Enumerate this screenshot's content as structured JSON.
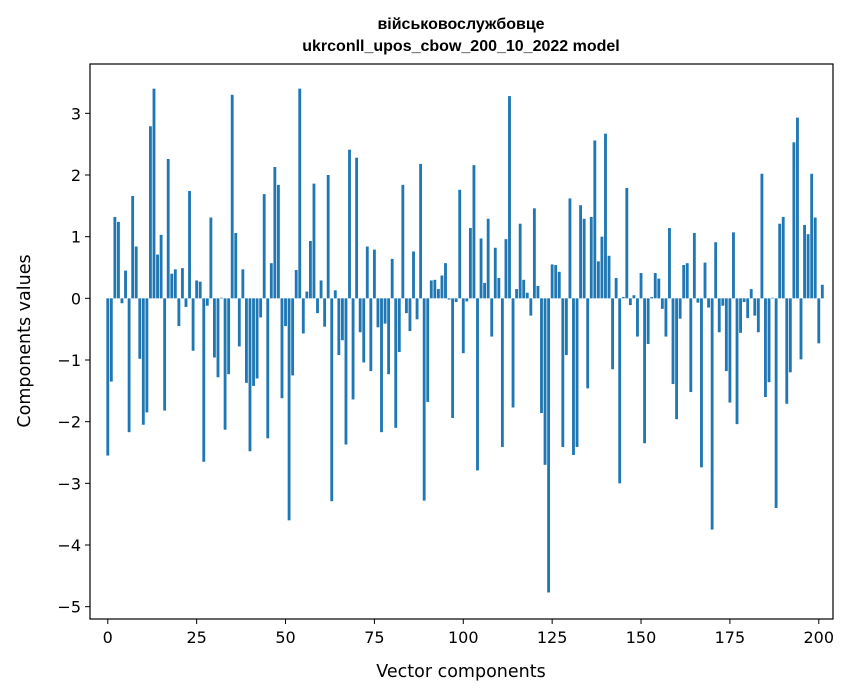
{
  "chart_data": {
    "type": "bar",
    "title_line1": "військовослужбовце",
    "title_line2": "ukrconll_upos_cbow_200_10_2022 model",
    "xlabel": "Vector components",
    "ylabel": "Components values",
    "xlim": [
      -5,
      204
    ],
    "ylim": [
      -5.2,
      3.8
    ],
    "xticks": [
      0,
      25,
      50,
      75,
      100,
      125,
      150,
      175,
      200
    ],
    "xtick_labels": [
      "0",
      "25",
      "50",
      "75",
      "100",
      "125",
      "150",
      "175",
      "200"
    ],
    "yticks": [
      3,
      2,
      1,
      0,
      -1,
      -2,
      -3,
      -4,
      -5
    ],
    "ytick_labels": [
      "3",
      "2",
      "1",
      "0",
      "−1",
      "−2",
      "−3",
      "−4",
      "−5"
    ],
    "bar_color": "#1f77b4",
    "grid": false,
    "values": [
      -2.55,
      -1.35,
      1.32,
      1.24,
      -0.08,
      0.45,
      -2.17,
      1.66,
      0.84,
      -0.98,
      -2.05,
      -1.85,
      2.79,
      3.4,
      0.71,
      1.03,
      -1.82,
      2.26,
      0.4,
      0.47,
      -0.45,
      0.49,
      -0.14,
      1.74,
      -0.85,
      0.29,
      0.27,
      -2.65,
      -0.12,
      1.31,
      -0.96,
      -1.28,
      0.01,
      -2.13,
      -1.23,
      3.3,
      1.06,
      -0.78,
      0.47,
      -1.37,
      -2.48,
      -1.42,
      -1.3,
      -0.31,
      1.69,
      -2.27,
      0.57,
      2.13,
      1.84,
      -1.62,
      -0.45,
      -3.6,
      -1.25,
      0.46,
      3.4,
      -0.57,
      0.11,
      0.93,
      1.86,
      -0.24,
      0.29,
      -0.46,
      2.0,
      -3.29,
      0.13,
      -0.92,
      -0.68,
      -2.37,
      2.41,
      -1.64,
      2.28,
      -0.55,
      -1.04,
      0.84,
      -1.18,
      0.79,
      -0.47,
      -2.17,
      -0.41,
      -1.23,
      0.64,
      -2.1,
      -0.87,
      1.84,
      -0.24,
      -0.53,
      0.76,
      -0.34,
      2.18,
      -3.28,
      -1.68,
      0.29,
      0.3,
      0.15,
      0.37,
      0.57,
      -0.02,
      -1.94,
      -0.06,
      1.76,
      -0.89,
      -0.05,
      1.14,
      2.16,
      -2.79,
      0.97,
      0.25,
      1.29,
      -0.62,
      0.82,
      0.33,
      -2.41,
      0.96,
      3.28,
      -1.77,
      0.15,
      1.21,
      0.3,
      0.09,
      -0.28,
      1.46,
      0.2,
      -1.86,
      -2.7,
      -4.77,
      0.55,
      0.54,
      0.43,
      -2.41,
      -0.92,
      1.62,
      -2.54,
      -2.41,
      1.51,
      1.29,
      -1.46,
      1.32,
      2.56,
      0.6,
      1.0,
      2.67,
      0.69,
      -1.15,
      0.33,
      -3.0,
      0.02,
      1.79,
      -0.11,
      0.05,
      -0.62,
      0.41,
      -2.35,
      -0.74,
      0.02,
      0.41,
      0.32,
      -0.17,
      -0.62,
      1.14,
      -1.39,
      -1.96,
      -0.33,
      0.54,
      0.57,
      -1.52,
      1.06,
      -0.07,
      -2.74,
      0.58,
      -0.15,
      -3.75,
      0.91,
      -0.55,
      -0.12,
      -1.18,
      -1.69,
      1.07,
      -2.04,
      -0.56,
      -0.06,
      -0.32,
      0.15,
      -0.28,
      -0.55,
      2.02,
      -1.6,
      -1.36,
      0.01,
      -3.4,
      1.21,
      1.32,
      -1.71,
      -1.2,
      2.53,
      2.93,
      -0.99,
      1.19,
      1.04,
      2.02,
      1.31,
      -0.73,
      0.22
    ]
  }
}
